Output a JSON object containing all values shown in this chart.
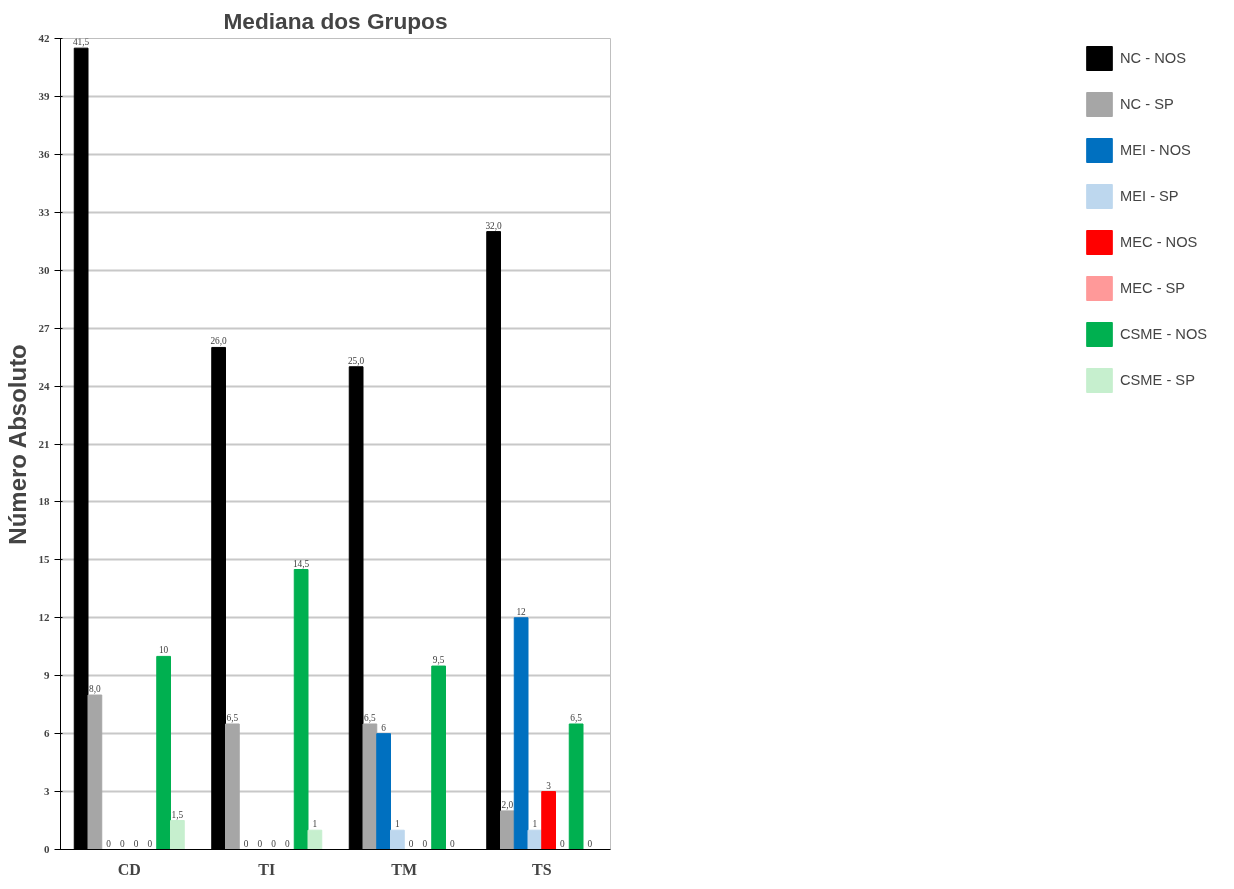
{
  "chart_data": {
    "type": "bar",
    "title": "Mediana dos Grupos",
    "ylabel": "Número Absoluto",
    "categories": [
      "CD",
      "TI",
      "TM",
      "TS"
    ],
    "series": [
      {
        "name": "NC - NOS",
        "color": "#000000",
        "values": [
          41.5,
          26,
          25,
          32
        ],
        "value_labels": [
          "41,5",
          "26,0",
          "25,0",
          "32,0"
        ]
      },
      {
        "name": "NC - SP",
        "color": "#a6a6a6",
        "values": [
          8,
          6.5,
          6.5,
          2
        ],
        "value_labels": [
          "8,0",
          "6,5",
          "6,5",
          "2,0"
        ]
      },
      {
        "name": "MEI - NOS",
        "color": "#0070c0",
        "values": [
          0,
          0,
          6,
          12
        ],
        "value_labels": [
          "0",
          "0",
          "6",
          "12"
        ]
      },
      {
        "name": "MEI - SP",
        "color": "#bdd7ee",
        "values": [
          0,
          0,
          1,
          1
        ],
        "value_labels": [
          "0",
          "0",
          "1",
          "1"
        ]
      },
      {
        "name": "MEC - NOS",
        "color": "#ff0000",
        "values": [
          0,
          0,
          0,
          3
        ],
        "value_labels": [
          "0",
          "0",
          "0",
          "3"
        ]
      },
      {
        "name": "MEC - SP",
        "color": "#ff9999",
        "values": [
          0,
          0,
          0,
          0
        ],
        "value_labels": [
          "0",
          "0",
          "0",
          "0"
        ]
      },
      {
        "name": "CSME - NOS",
        "color": "#00b050",
        "values": [
          10,
          14.5,
          9.5,
          6.5
        ],
        "value_labels": [
          "10",
          "14,5",
          "9,5",
          "6,5"
        ]
      },
      {
        "name": "CSME - SP",
        "color": "#c6efce",
        "values": [
          1.5,
          1,
          0,
          0
        ],
        "value_labels": [
          "1,5",
          "1",
          "0",
          "0"
        ]
      }
    ],
    "ylim": [
      0,
      42
    ],
    "yticks": [
      0,
      3,
      6,
      9,
      12,
      15,
      18,
      21,
      24,
      27,
      30,
      33,
      36,
      39,
      42
    ],
    "grid": "y",
    "legend": "right"
  }
}
